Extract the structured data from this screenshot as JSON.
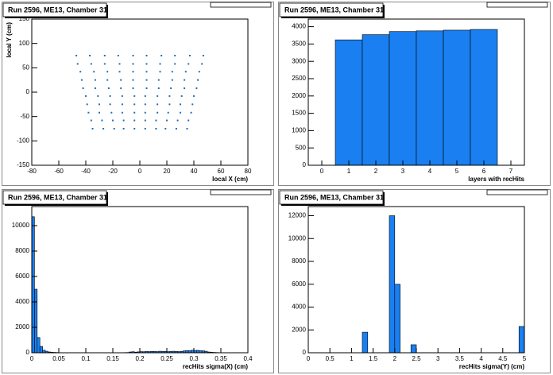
{
  "chart_data": [
    {
      "type": "scatter",
      "title": "Run 2596, ME13, Chamber 31",
      "x_label": "local X (cm)",
      "y_label": "local Y (cm)",
      "color": "#1f6fb4",
      "xlim": [
        -80,
        80
      ],
      "xticks": [
        -80,
        -60,
        -40,
        -20,
        0,
        20,
        40,
        60,
        80
      ],
      "ylim": [
        -150,
        150
      ],
      "yticks": [
        -150,
        -100,
        -50,
        0,
        50,
        100,
        150
      ],
      "x": [
        -47,
        -37,
        -26,
        -16,
        -5,
        5,
        16,
        26,
        37,
        47,
        -46,
        -36,
        -26,
        -15,
        -5,
        5,
        15,
        26,
        36,
        46,
        -44,
        -34,
        -24,
        -15,
        -5,
        5,
        15,
        24,
        34,
        44,
        -43,
        -33,
        -24,
        -14,
        -5,
        5,
        14,
        24,
        33,
        43,
        -42,
        -33,
        -23,
        -14,
        -5,
        5,
        14,
        23,
        33,
        42,
        -40,
        -31,
        -22,
        -13,
        -4,
        4,
        13,
        22,
        31,
        40,
        -39,
        -30,
        -22,
        -13,
        -4,
        4,
        13,
        22,
        30,
        39,
        -38,
        -30,
        -21,
        -13,
        -4,
        4,
        13,
        21,
        30,
        38,
        -36,
        -28,
        -20,
        -12,
        -4,
        4,
        12,
        20,
        28,
        36,
        -35,
        -27,
        -19,
        -12,
        -4,
        4,
        12,
        19,
        27,
        35
      ],
      "y": [
        75,
        75,
        75,
        75,
        75,
        75,
        75,
        75,
        75,
        75,
        58,
        58,
        58,
        58,
        58,
        58,
        58,
        58,
        58,
        58,
        42,
        42,
        42,
        42,
        42,
        42,
        42,
        42,
        42,
        42,
        25,
        25,
        25,
        25,
        25,
        25,
        25,
        25,
        25,
        25,
        8,
        8,
        8,
        8,
        8,
        8,
        8,
        8,
        8,
        8,
        -8,
        -8,
        -8,
        -8,
        -8,
        -8,
        -8,
        -8,
        -8,
        -8,
        -25,
        -25,
        -25,
        -25,
        -25,
        -25,
        -25,
        -25,
        -25,
        -25,
        -42,
        -42,
        -42,
        -42,
        -42,
        -42,
        -42,
        -42,
        -42,
        -42,
        -58,
        -58,
        -58,
        -58,
        -58,
        -58,
        -58,
        -58,
        -58,
        -58,
        -75,
        -75,
        -75,
        -75,
        -75,
        -75,
        -75,
        -75,
        -75,
        -75
      ]
    },
    {
      "type": "histogram",
      "title": "Run 2596, ME13, Chamber 31",
      "x_label": "layers with recHits",
      "color": "#1a7ff0",
      "xlim": [
        -0.5,
        7.5
      ],
      "xticks": [
        0,
        1,
        2,
        3,
        4,
        5,
        6,
        7
      ],
      "ylim": [
        0,
        4220
      ],
      "yticks": [
        0,
        500,
        1000,
        1500,
        2000,
        2500,
        3000,
        3500,
        4000
      ],
      "bins": [
        0.5,
        1.5,
        2.5,
        3.5,
        4.5,
        5.5,
        6.5
      ],
      "values": [
        3620,
        3770,
        3860,
        3880,
        3900,
        3920
      ]
    },
    {
      "type": "histogram",
      "title": "Run 2596, ME13, Chamber 31",
      "x_label": "recHits sigma(X) (cm)",
      "color": "#1a7ff0",
      "xlim": [
        0,
        0.4
      ],
      "xticks": [
        0,
        0.05,
        0.1,
        0.15,
        0.2,
        0.25,
        0.3,
        0.35,
        0.4
      ],
      "ylim": [
        0,
        11500
      ],
      "yticks": [
        0,
        2000,
        4000,
        6000,
        8000,
        10000
      ],
      "bins": [
        0,
        0.005,
        0.01,
        0.015,
        0.02,
        0.025,
        0.03,
        0.035,
        0.04,
        0.045,
        0.05,
        0.055,
        0.06,
        0.065,
        0.07,
        0.075,
        0.08,
        0.085,
        0.09,
        0.095,
        0.1,
        0.105,
        0.11,
        0.115,
        0.12,
        0.125,
        0.13,
        0.135,
        0.14,
        0.145,
        0.15,
        0.155,
        0.16,
        0.165,
        0.17,
        0.175,
        0.18,
        0.185,
        0.19,
        0.195,
        0.2,
        0.205,
        0.21,
        0.215,
        0.22,
        0.225,
        0.23,
        0.235,
        0.24,
        0.245,
        0.25,
        0.255,
        0.26,
        0.265,
        0.27,
        0.275,
        0.28,
        0.285,
        0.29,
        0.295,
        0.3,
        0.305,
        0.31,
        0.315,
        0.32,
        0.325,
        0.33,
        0.335,
        0.34,
        0.345,
        0.35,
        0.355,
        0.36,
        0.365,
        0.37,
        0.375,
        0.38,
        0.385,
        0.39,
        0.395,
        0.4
      ],
      "values": [
        10700,
        5000,
        1200,
        500,
        200,
        120,
        60,
        40,
        30,
        20,
        10,
        10,
        8,
        6,
        5,
        5,
        4,
        4,
        3,
        3,
        3,
        3,
        2,
        2,
        2,
        2,
        2,
        2,
        2,
        3,
        5,
        6,
        8,
        10,
        15,
        20,
        60,
        80,
        50,
        70,
        90,
        80,
        100,
        90,
        110,
        100,
        90,
        120,
        100,
        110,
        90,
        100,
        120,
        100,
        90,
        110,
        150,
        170,
        160,
        200,
        180,
        190,
        160,
        150,
        120,
        60,
        40,
        30,
        20,
        10,
        5,
        4,
        3,
        2,
        2,
        1,
        1,
        1,
        0,
        0
      ]
    },
    {
      "type": "histogram",
      "title": "Run 2596, ME13, Chamber 31",
      "x_label": "recHits sigma(Y) (cm)",
      "color": "#1a7ff0",
      "xlim": [
        0,
        5
      ],
      "xticks": [
        0,
        0.5,
        1,
        1.5,
        2,
        2.5,
        3,
        3.5,
        4,
        4.5,
        5
      ],
      "ylim": [
        0,
        12800
      ],
      "yticks": [
        0,
        2000,
        4000,
        6000,
        8000,
        10000,
        12000
      ],
      "bins": [
        0,
        0.125,
        0.25,
        0.375,
        0.5,
        0.625,
        0.75,
        0.875,
        1,
        1.125,
        1.25,
        1.375,
        1.5,
        1.625,
        1.75,
        1.875,
        2,
        2.125,
        2.25,
        2.375,
        2.5,
        2.625,
        2.75,
        2.875,
        3,
        3.125,
        3.25,
        3.375,
        3.5,
        3.625,
        3.75,
        3.875,
        4,
        4.125,
        4.25,
        4.375,
        4.5,
        4.625,
        4.75,
        4.875,
        5
      ],
      "values": [
        0,
        0,
        0,
        0,
        0,
        0,
        0,
        0,
        0,
        0,
        1800,
        0,
        0,
        0,
        0,
        12000,
        6000,
        0,
        0,
        700,
        0,
        0,
        0,
        0,
        0,
        0,
        0,
        0,
        0,
        0,
        0,
        0,
        0,
        0,
        0,
        0,
        0,
        0,
        0,
        2300
      ]
    }
  ]
}
